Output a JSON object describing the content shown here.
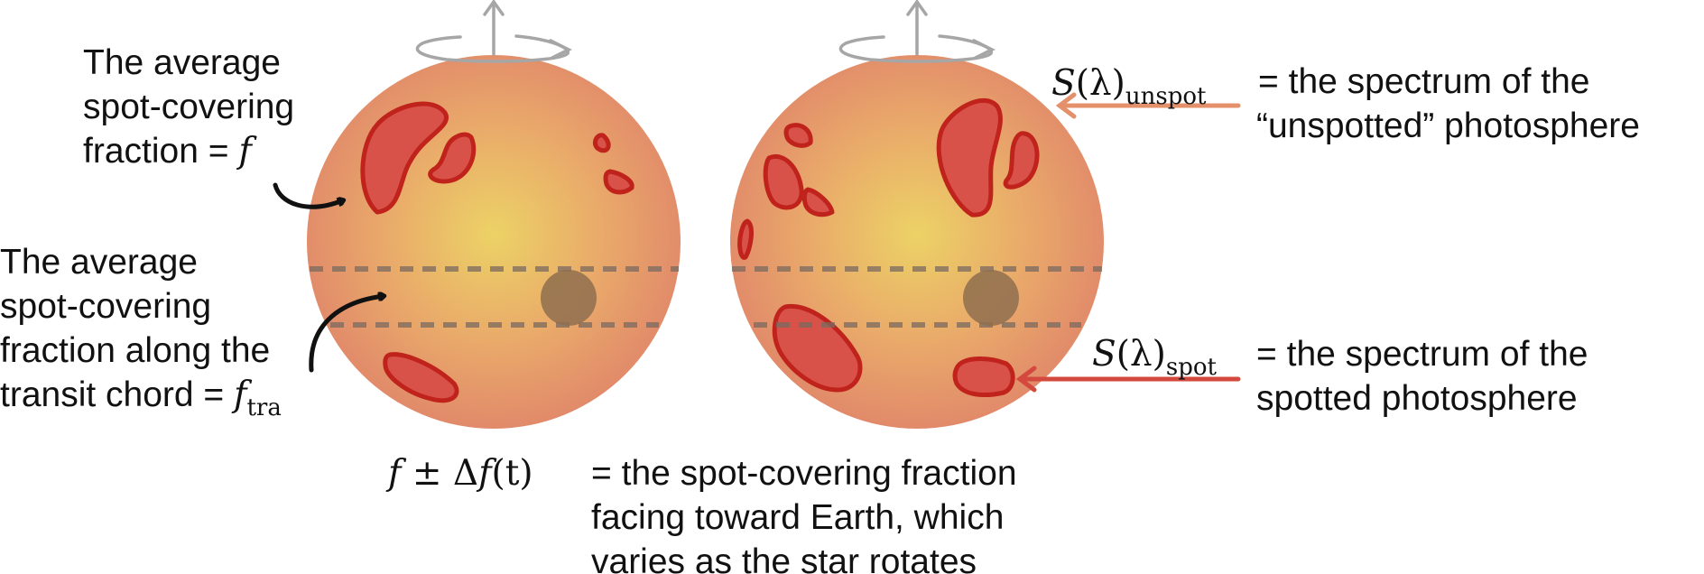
{
  "labels": {
    "avg_fraction": {
      "line1": "The average",
      "line2": "spot-covering",
      "line3_text": "fraction = ",
      "symbol": "f"
    },
    "transit_fraction": {
      "line1": "The average",
      "line2": "spot-covering",
      "line3": "fraction along the",
      "line4_text": "transit chord = ",
      "symbol": "f",
      "subscript": "tra"
    },
    "unspot": {
      "symbol": "S",
      "arg": "(λ)",
      "subscript": "unspot",
      "line1": "= the spectrum of the",
      "line2": "“unspotted” photosphere"
    },
    "spot": {
      "symbol": "S",
      "arg": "(λ)",
      "subscript": "spot",
      "line1": "= the spectrum of the",
      "line2": "spotted photosphere"
    },
    "rotation": {
      "f": "f",
      "pm": " ± Δ",
      "f2": "f",
      "t": "(t)",
      "line1": "= the spot-covering fraction",
      "line2": "facing toward Earth, which",
      "line3": "varies as the star rotates"
    }
  },
  "colors": {
    "star_center": "#ecd266",
    "star_edge": "#e0866a",
    "spot_fill": "#d9524a",
    "spot_stroke": "#c0221c",
    "planet": "#8f6e4f",
    "chord": "#7a6a60",
    "arrow_unspot": "#e4906a",
    "arrow_spot": "#d4493e",
    "rotation_axis": "#a6a6a6"
  }
}
